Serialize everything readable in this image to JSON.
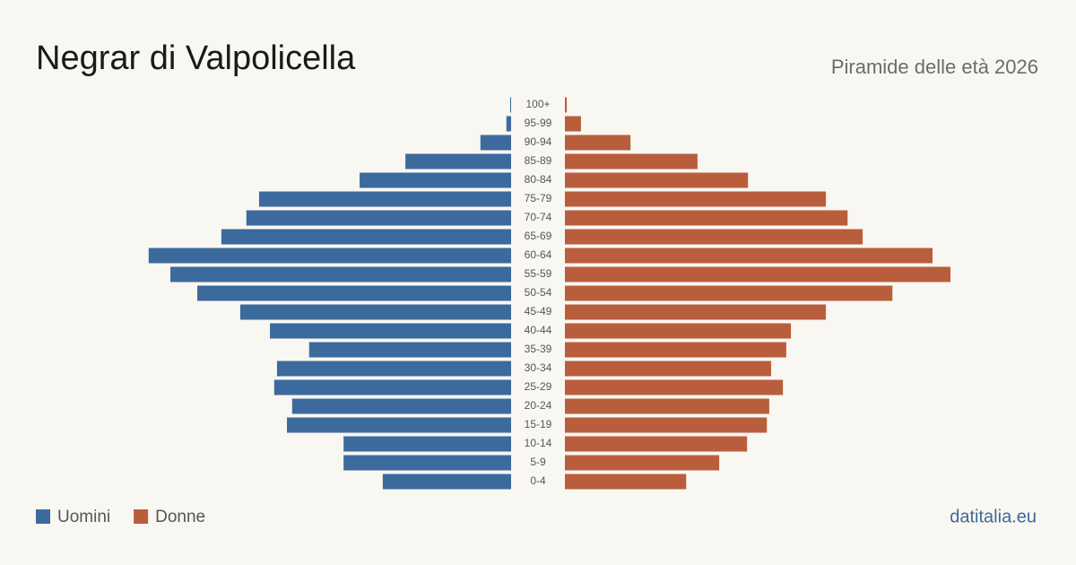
{
  "chart_data": {
    "type": "pyramid",
    "title": "Negrar di Valpolicella",
    "subtitle": "Piramide delle età 2026",
    "categories": [
      "100+",
      "95-99",
      "90-94",
      "85-89",
      "80-84",
      "75-79",
      "70-74",
      "65-69",
      "60-64",
      "55-59",
      "50-54",
      "45-49",
      "40-44",
      "35-39",
      "30-34",
      "25-29",
      "20-24",
      "15-19",
      "10-14",
      "5-9",
      "0-4"
    ],
    "series": [
      {
        "name": "Uomini",
        "color": "#3d6a9c",
        "values": [
          2,
          10,
          65,
          224,
          321,
          534,
          561,
          614,
          768,
          722,
          665,
          574,
          511,
          428,
          496,
          502,
          464,
          475,
          355,
          355,
          272
        ]
      },
      {
        "name": "Donne",
        "color": "#b95e3d",
        "values": [
          4,
          34,
          139,
          281,
          388,
          553,
          599,
          631,
          779,
          817,
          694,
          553,
          479,
          469,
          437,
          462,
          433,
          428,
          386,
          327,
          257
        ]
      }
    ],
    "source": "datitalia.eu"
  }
}
